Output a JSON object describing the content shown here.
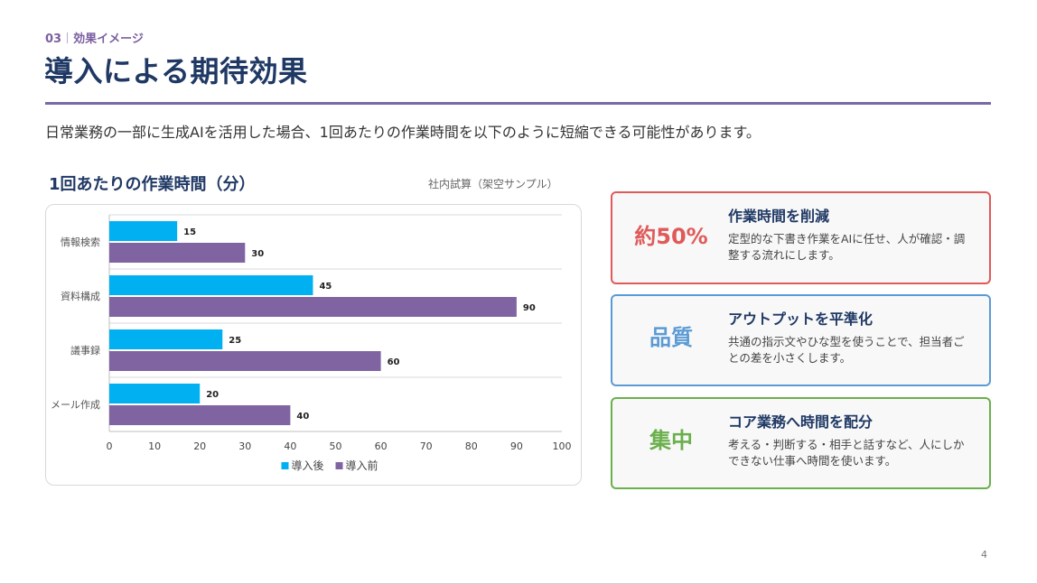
{
  "header": {
    "section_number": "03",
    "section_label": "効果イメージ",
    "title": "導入による期待効果",
    "lead": "日常業務の一部に生成AIを活用した場合、1回あたりの作業時間を以下のように短縮できる可能性があります。"
  },
  "chart_panel": {
    "title": "1回あたりの作業時間（分）",
    "note": "社内試算（架空サンプル）"
  },
  "chart_data": {
    "type": "bar",
    "orientation": "horizontal",
    "categories": [
      "情報検索",
      "資料構成",
      "議事録",
      "メール作成"
    ],
    "series": [
      {
        "name": "導入後",
        "values": [
          15,
          45,
          25,
          20
        ],
        "color": "#00b0f0"
      },
      {
        "name": "導入前",
        "values": [
          30,
          90,
          60,
          40
        ],
        "color": "#8064a2"
      }
    ],
    "xlim": [
      0,
      100
    ],
    "xticks": [
      0,
      10,
      20,
      30,
      40,
      50,
      60,
      70,
      80,
      90,
      100
    ],
    "grid": "horizontal separators",
    "legend": "bottom-center",
    "data_labels": true
  },
  "cards": [
    {
      "big": "約50%",
      "heading": "作業時間を削減",
      "body": "定型的な下書き作業をAIに任せ、人が確認・調整する流れにします。",
      "color": "#e05a5a"
    },
    {
      "big": "品質",
      "heading": "アウトプットを平準化",
      "body": "共通の指示文やひな型を使うことで、担当者ごとの差を小さくします。",
      "color": "#5b9bd5"
    },
    {
      "big": "集中",
      "heading": "コア業務へ時間を配分",
      "body": "考える・判断する・相手と話すなど、人にしかできない仕事へ時間を使います。",
      "color": "#6ab04c"
    }
  ],
  "page_number": "4"
}
